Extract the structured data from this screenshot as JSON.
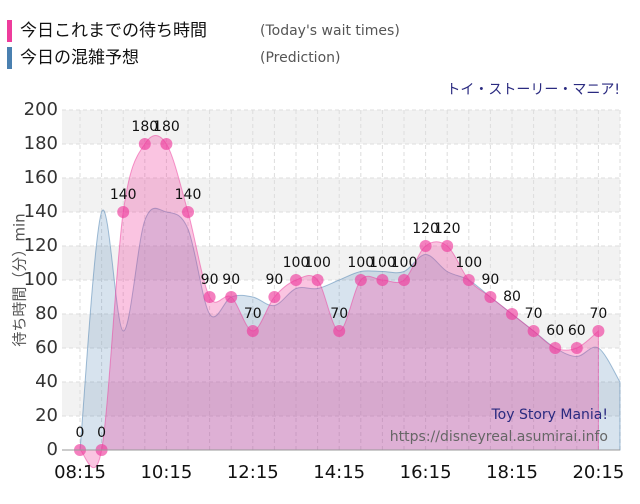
{
  "chart_data": {
    "type": "area",
    "title": "トイ・ストーリー・マニア!",
    "ylabel": "待ち時間（分）min",
    "watermark": "Toy Story Mania!",
    "source": "https://disneyreal.asumirai.info",
    "categories": [
      "08:15",
      null,
      null,
      null,
      "10:15",
      null,
      null,
      null,
      "12:15",
      null,
      null,
      null,
      "14:15",
      null,
      null,
      null,
      "16:15",
      null,
      null,
      null,
      "18:15",
      null,
      null,
      null,
      "20:15",
      null
    ],
    "series": [
      {
        "name": "今日これまでの待ち時間",
        "name_en": "(Today's wait times)",
        "color": "#ee3c9c",
        "values": [
          0,
          0,
          140,
          180,
          180,
          140,
          90,
          90,
          70,
          90,
          100,
          100,
          70,
          100,
          100,
          100,
          120,
          120,
          100,
          90,
          80,
          70,
          60,
          60,
          70,
          null
        ]
      },
      {
        "name": "今日の混雑予想",
        "name_en": "(Prediction)",
        "color": "#4a80b0",
        "values": [
          0,
          140,
          70,
          135,
          140,
          130,
          80,
          90,
          90,
          85,
          95,
          95,
          100,
          105,
          105,
          105,
          115,
          105,
          100,
          90,
          80,
          70,
          60,
          55,
          60,
          40
        ]
      }
    ],
    "ylim": [
      0,
      200
    ],
    "yticks": [
      0,
      20,
      40,
      60,
      80,
      100,
      120,
      140,
      160,
      180,
      200
    ],
    "grid": true
  }
}
